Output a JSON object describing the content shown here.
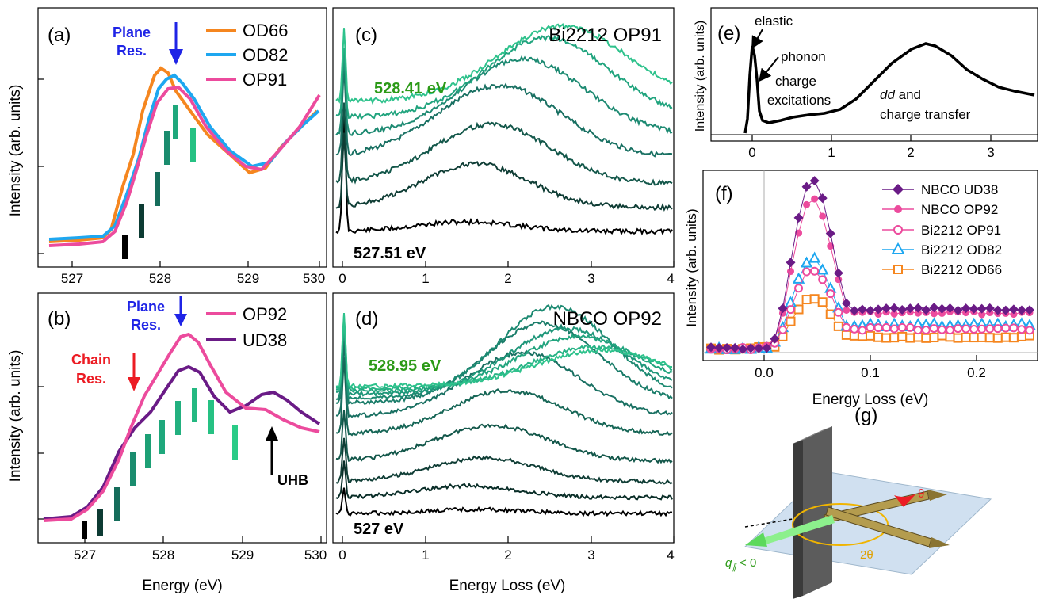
{
  "panels": {
    "a": {
      "label": "(a)",
      "annotation": [
        "Plane",
        "Res."
      ],
      "legend": [
        "OD66",
        "OD82",
        "OP91"
      ],
      "xticks": [
        "527",
        "528",
        "529",
        "530"
      ],
      "xlabel": ""
    },
    "b": {
      "label": "(b)",
      "annotation_plane": [
        "Plane",
        "Res."
      ],
      "annotation_chain": [
        "Chain",
        "Res."
      ],
      "annotation_uhb": "UHB",
      "legend": [
        "OP92",
        "UD38"
      ],
      "xticks": [
        "527",
        "528",
        "529",
        "530"
      ],
      "xlabel": "Energy (eV)"
    },
    "c": {
      "label": "(c)",
      "title": "Bi2212 OP91",
      "top_energy": "528.41 eV",
      "bottom_energy": "527.51 eV",
      "xticks": [
        "0",
        "1",
        "2",
        "3",
        "4"
      ]
    },
    "d": {
      "label": "(d)",
      "title": "NBCO OP92",
      "top_energy": "528.95 eV",
      "bottom_energy": "527 eV",
      "xticks": [
        "0",
        "1",
        "2",
        "3",
        "4"
      ],
      "xlabel": "Energy Loss (eV)"
    },
    "e": {
      "label": "(e)",
      "ylabel": "Intensity (arb. units)",
      "notes": {
        "elastic": "elastic",
        "phonon": "phonon",
        "charge1": "charge",
        "charge2": "excitations",
        "dd1": "dd",
        "dd1b": " and",
        "dd2": "charge transfer"
      },
      "xticks": [
        "0",
        "1",
        "2",
        "3"
      ]
    },
    "f": {
      "label": "(f)",
      "ylabel": "Intensity (arb. units)",
      "xlabel": "Energy Loss (eV)",
      "xticks": [
        "0.0",
        "0.1",
        "0.2"
      ],
      "legend": [
        "NBCO UD38",
        "NBCO OP92",
        "Bi2212 OP91",
        "Bi2212 OD82",
        "Bi2212 OD66"
      ]
    },
    "g": {
      "label": "(g)",
      "theta": "θ",
      "two_theta": "2θ",
      "q": "q",
      "q_sub": "∥",
      "q_rel": " < 0"
    }
  },
  "left_ylabel": "Intensity (arb. units)",
  "colors": {
    "od66": "#f5861f",
    "od82": "#1ea7f0",
    "op91": "#ec4b9d",
    "ud38": "#6a1b86",
    "blue_arrow": "#1f24e6",
    "red_arrow": "#ec1c24",
    "green_text": "#2c9a17",
    "nbco_ud38": "#6a1b86",
    "nbco_op92": "#ec4b9d",
    "bi_op91": "#ec4b9d",
    "bi_od82": "#1ea7f0",
    "bi_od66": "#f5861f"
  }
}
